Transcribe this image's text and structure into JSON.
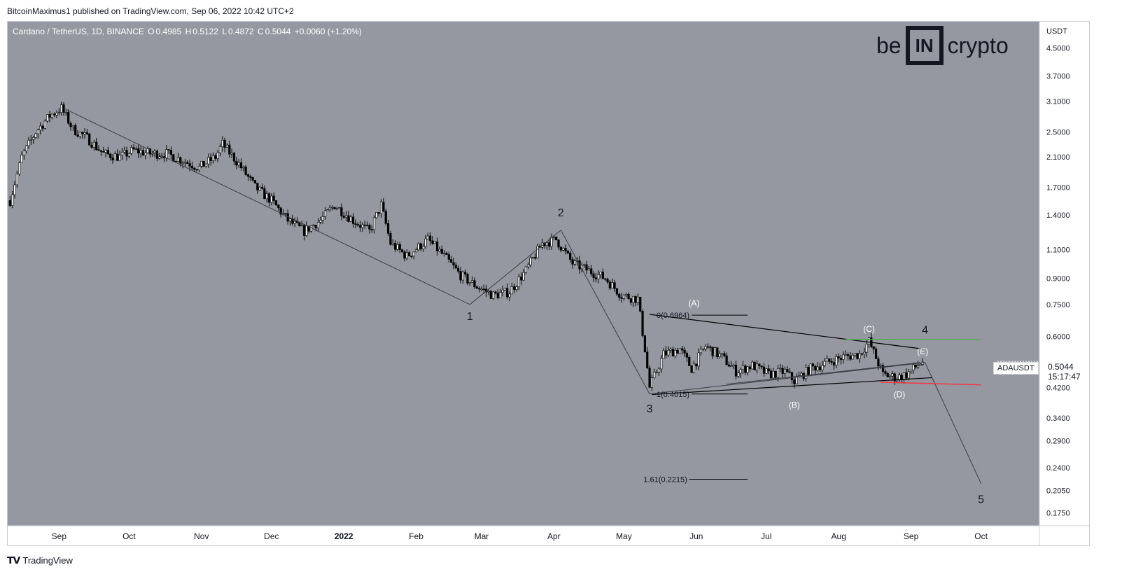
{
  "header": {
    "published_text": "BitcoinMaximus1 published on TradingView.com, Sep 06, 2022 10:42 UTC+2"
  },
  "symbol": {
    "name": "Cardano / TetherUS, 1D, BINANCE",
    "o_label": "O",
    "o": "0.4985",
    "h_label": "H",
    "h": "0.5122",
    "l_label": "L",
    "l": "0.4872",
    "c_label": "C",
    "c": "0.5044",
    "change": "+0.0060 (+1.20%)"
  },
  "logo": {
    "left": "be",
    "box": "IN",
    "right": "crypto"
  },
  "price_axis": {
    "currency": "USDT",
    "ticks": [
      "4.5000",
      "3.7000",
      "3.1000",
      "2.5000",
      "2.1000",
      "1.7000",
      "1.4000",
      "1.1000",
      "0.9000",
      "0.7500",
      "0.6000",
      "0.4200",
      "0.3400",
      "0.2900",
      "0.2400",
      "0.2050",
      "0.1750"
    ]
  },
  "current_price": {
    "ticker": "ADAUSDT",
    "price": "0.5044",
    "countdown": "15:17:47"
  },
  "footer": {
    "brand": "TradingView"
  },
  "colors": {
    "chart_bg": "#9598a1",
    "candle": "#000000",
    "resistance": "#4caf50",
    "support": "#f23645",
    "white_label": "#ffffff"
  },
  "chart_data": {
    "type": "candlestick",
    "title": "Cardano / TetherUS, 1D, BINANCE",
    "y_scale": "log",
    "ylim": [
      0.16,
      5.4
    ],
    "x_labels": [
      {
        "label": "Sep",
        "t": "2021-09-01"
      },
      {
        "label": "Oct",
        "t": "2021-10-01"
      },
      {
        "label": "Nov",
        "t": "2021-11-01"
      },
      {
        "label": "Dec",
        "t": "2021-12-01"
      },
      {
        "label": "2022",
        "t": "2022-01-01"
      },
      {
        "label": "Feb",
        "t": "2022-02-01"
      },
      {
        "label": "Mar",
        "t": "2022-03-01"
      },
      {
        "label": "Apr",
        "t": "2022-04-01"
      },
      {
        "label": "May",
        "t": "2022-05-01"
      },
      {
        "label": "Jun",
        "t": "2022-06-01"
      },
      {
        "label": "Jul",
        "t": "2022-07-01"
      },
      {
        "label": "Aug",
        "t": "2022-08-01"
      },
      {
        "label": "Sep",
        "t": "2022-09-01"
      },
      {
        "label": "Oct",
        "t": "2022-10-01"
      }
    ],
    "price_path": [
      [
        "2021-08-11",
        1.55
      ],
      [
        "2021-08-16",
        2.1
      ],
      [
        "2021-08-22",
        2.5
      ],
      [
        "2021-08-28",
        2.8
      ],
      [
        "2021-09-02",
        2.95
      ],
      [
        "2021-09-07",
        2.55
      ],
      [
        "2021-09-13",
        2.4
      ],
      [
        "2021-09-20",
        2.15
      ],
      [
        "2021-09-27",
        2.1
      ],
      [
        "2021-10-03",
        2.2
      ],
      [
        "2021-10-10",
        2.15
      ],
      [
        "2021-10-17",
        2.15
      ],
      [
        "2021-10-24",
        2.05
      ],
      [
        "2021-10-31",
        1.95
      ],
      [
        "2021-11-07",
        2.1
      ],
      [
        "2021-11-10",
        2.3
      ],
      [
        "2021-11-17",
        2.0
      ],
      [
        "2021-11-24",
        1.7
      ],
      [
        "2021-12-01",
        1.55
      ],
      [
        "2021-12-08",
        1.35
      ],
      [
        "2021-12-15",
        1.25
      ],
      [
        "2021-12-22",
        1.35
      ],
      [
        "2021-12-28",
        1.5
      ],
      [
        "2022-01-05",
        1.35
      ],
      [
        "2022-01-12",
        1.25
      ],
      [
        "2022-01-17",
        1.5
      ],
      [
        "2022-01-21",
        1.15
      ],
      [
        "2022-01-28",
        1.05
      ],
      [
        "2022-02-06",
        1.18
      ],
      [
        "2022-02-13",
        1.05
      ],
      [
        "2022-02-20",
        0.92
      ],
      [
        "2022-02-27",
        0.85
      ],
      [
        "2022-03-06",
        0.8
      ],
      [
        "2022-03-13",
        0.82
      ],
      [
        "2022-03-20",
        0.95
      ],
      [
        "2022-03-27",
        1.15
      ],
      [
        "2022-04-02",
        1.18
      ],
      [
        "2022-04-09",
        1.0
      ],
      [
        "2022-04-16",
        0.95
      ],
      [
        "2022-04-23",
        0.9
      ],
      [
        "2022-04-30",
        0.8
      ],
      [
        "2022-05-07",
        0.78
      ],
      [
        "2022-05-10",
        0.55
      ],
      [
        "2022-05-12",
        0.42
      ],
      [
        "2022-05-18",
        0.53
      ],
      [
        "2022-05-25",
        0.55
      ],
      [
        "2022-05-30",
        0.48
      ],
      [
        "2022-06-05",
        0.56
      ],
      [
        "2022-06-12",
        0.52
      ],
      [
        "2022-06-18",
        0.47
      ],
      [
        "2022-06-25",
        0.49
      ],
      [
        "2022-07-02",
        0.46
      ],
      [
        "2022-07-09",
        0.47
      ],
      [
        "2022-07-13",
        0.44
      ],
      [
        "2022-07-20",
        0.48
      ],
      [
        "2022-07-27",
        0.5
      ],
      [
        "2022-08-03",
        0.52
      ],
      [
        "2022-08-10",
        0.53
      ],
      [
        "2022-08-14",
        0.58
      ],
      [
        "2022-08-20",
        0.46
      ],
      [
        "2022-08-26",
        0.45
      ],
      [
        "2022-08-30",
        0.46
      ],
      [
        "2022-09-06",
        0.5044
      ]
    ],
    "wave_labels": [
      {
        "text": "1",
        "t": "2022-02-24",
        "y": 0.75
      },
      {
        "text": "2",
        "t": "2022-04-04",
        "y": 1.26
      },
      {
        "text": "3",
        "t": "2022-05-12",
        "y": 0.4015
      },
      {
        "text": "4",
        "t": "2022-09-07",
        "y": 0.56
      },
      {
        "text": "5",
        "t": "2022-10-01",
        "y": 0.215
      }
    ],
    "sub_wave_labels": [
      {
        "text": "(A)",
        "t": "2022-05-31",
        "y": 0.7
      },
      {
        "text": "(B)",
        "t": "2022-07-13",
        "y": 0.418
      },
      {
        "text": "(C)",
        "t": "2022-08-14",
        "y": 0.59
      },
      {
        "text": "(D)",
        "t": "2022-08-27",
        "y": 0.445
      },
      {
        "text": "(E)",
        "t": "2022-09-06",
        "y": 0.51
      }
    ],
    "fib_levels": [
      {
        "label": "0(0.6964)",
        "value": 0.6964
      },
      {
        "label": "1(0.4015)",
        "value": 0.4015
      },
      {
        "label": "1.61(0.2215)",
        "value": 0.2215
      }
    ],
    "resistance_level": 0.587,
    "support_level": 0.432
  }
}
